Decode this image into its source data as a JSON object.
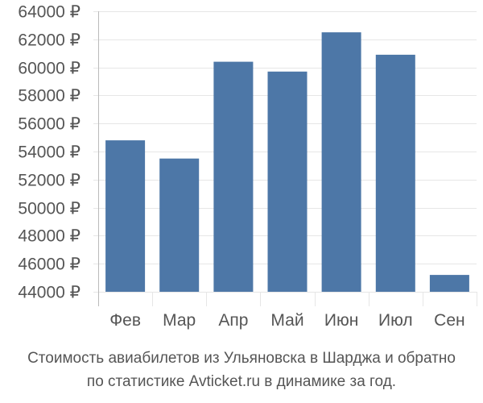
{
  "chart_data": {
    "type": "bar",
    "categories": [
      "Фев",
      "Мар",
      "Апр",
      "Май",
      "Июн",
      "Июл",
      "Сен"
    ],
    "values": [
      54800,
      53500,
      60400,
      59700,
      62500,
      60900,
      45200
    ],
    "ylim": [
      44000,
      64000
    ],
    "yticks": [
      44000,
      46000,
      48000,
      50000,
      52000,
      54000,
      56000,
      58000,
      60000,
      62000,
      64000
    ],
    "ytick_suffix": " ₽",
    "grid": true,
    "colors": {
      "bar": "#4d77a7",
      "grid": "#e6e6e6",
      "axis": "#bbbbbb",
      "text": "#555555"
    }
  },
  "caption": {
    "line1": "Стоимость авиабилетов из Ульяновска в Шарджа и обратно",
    "line2": "по статистике Avticket.ru в динамике за год."
  }
}
